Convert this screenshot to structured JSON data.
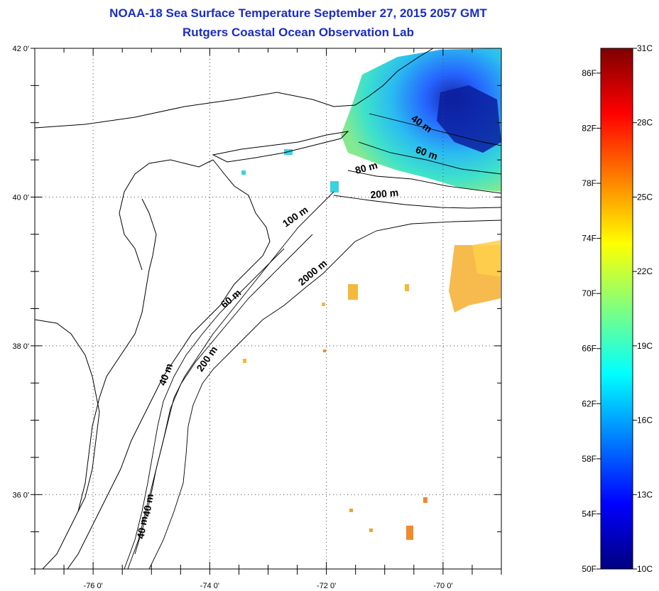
{
  "title": {
    "line1": "NOAA-18 Sea Surface Temperature September 27, 2015 2057 GMT",
    "line2": "Rutgers Coastal Ocean Observation Lab"
  },
  "map": {
    "lon_range": [
      -77.0,
      -69.0
    ],
    "lat_range": [
      35.0,
      42.0
    ],
    "x_ticks": [
      {
        "lon": -76,
        "label": "-76 0'"
      },
      {
        "lon": -74,
        "label": "-74 0'"
      },
      {
        "lon": -72,
        "label": "-72 0'"
      },
      {
        "lon": -70,
        "label": "-70 0'"
      }
    ],
    "y_ticks": [
      {
        "lat": 42,
        "label": "42 0'"
      },
      {
        "lat": 40,
        "label": "40 0'"
      },
      {
        "lat": 38,
        "label": "38 0'"
      },
      {
        "lat": 36,
        "label": "36 0'"
      }
    ],
    "grid": "dotted",
    "contour_labels": [
      {
        "text": "40 m",
        "lon": -70.4,
        "lat": 40.95
      },
      {
        "text": "60 m",
        "lon": -70.3,
        "lat": 40.55
      },
      {
        "text": "80 m",
        "lon": -71.3,
        "lat": 40.35
      },
      {
        "text": "200 m",
        "lon": -71.0,
        "lat": 40.0
      },
      {
        "text": "100 m",
        "lon": -72.5,
        "lat": 39.7
      },
      {
        "text": "2000 m",
        "lon": -72.2,
        "lat": 38.95
      },
      {
        "text": "60 m",
        "lon": -73.6,
        "lat": 38.6
      },
      {
        "text": "200 m",
        "lon": -74.0,
        "lat": 37.8
      },
      {
        "text": "40 m",
        "lon": -74.7,
        "lat": 37.6
      },
      {
        "text": "40 m",
        "lon": -75.0,
        "lat": 35.85
      },
      {
        "text": "40 m",
        "lon": -75.1,
        "lat": 35.55
      }
    ]
  },
  "colorbar": {
    "min_c": 10,
    "max_c": 31,
    "colors": [
      "#00007f",
      "#0000ff",
      "#007fff",
      "#00ffff",
      "#7fff7f",
      "#ffff00",
      "#ff7f00",
      "#ff0000",
      "#7f0000"
    ],
    "fahrenheit_labels": [
      {
        "f": 50,
        "label": "50F"
      },
      {
        "f": 54,
        "label": "54F"
      },
      {
        "f": 58,
        "label": "58F"
      },
      {
        "f": 62,
        "label": "62F"
      },
      {
        "f": 66,
        "label": "66F"
      },
      {
        "f": 70,
        "label": "70F"
      },
      {
        "f": 74,
        "label": "74F"
      },
      {
        "f": 78,
        "label": "78F"
      },
      {
        "f": 82,
        "label": "82F"
      },
      {
        "f": 86,
        "label": "86F"
      }
    ],
    "celsius_labels": [
      {
        "c": 10,
        "label": "10C"
      },
      {
        "c": 13,
        "label": "13C"
      },
      {
        "c": 16,
        "label": "16C"
      },
      {
        "c": 19,
        "label": "19C"
      },
      {
        "c": 22,
        "label": "22C"
      },
      {
        "c": 25,
        "label": "25C"
      },
      {
        "c": 28,
        "label": "28C"
      },
      {
        "c": 31,
        "label": "31C"
      }
    ]
  }
}
